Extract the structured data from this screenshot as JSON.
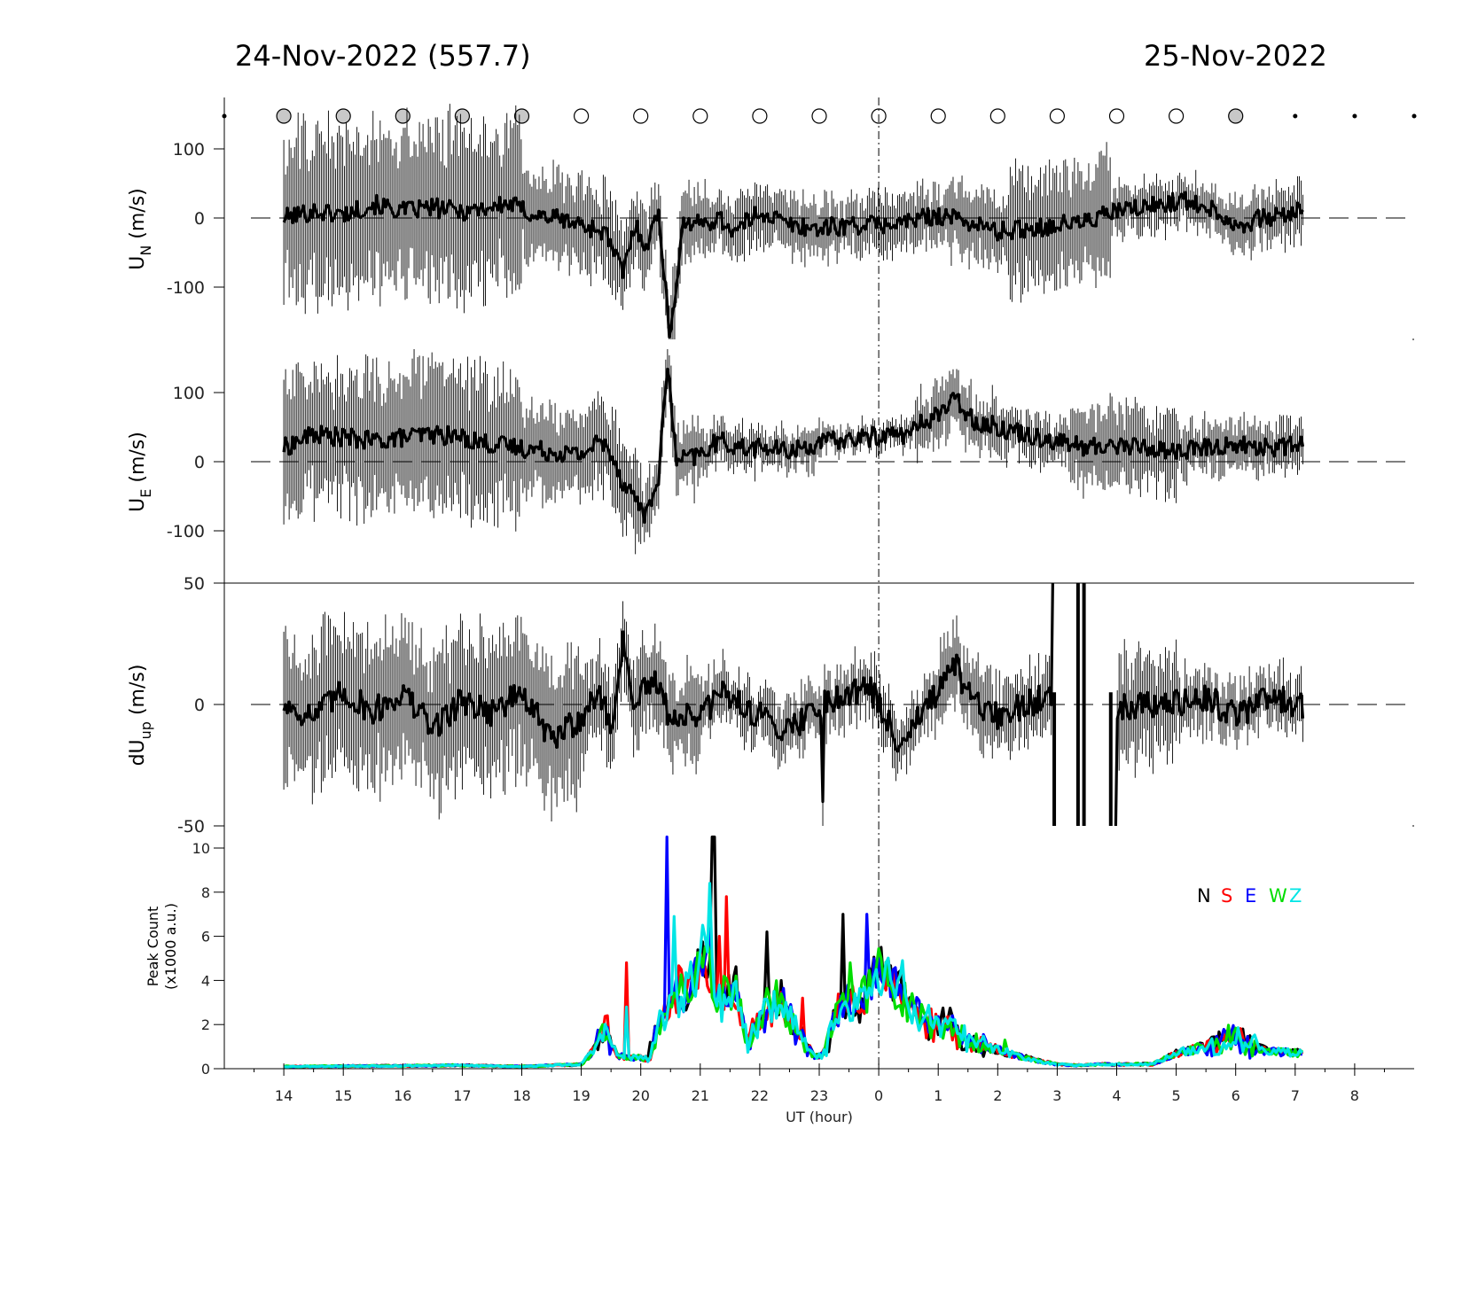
{
  "titles": {
    "left": "24-Nov-2022 (557.7)",
    "right": "25-Nov-2022"
  },
  "colors": {
    "N": "#000000",
    "S": "#ff0000",
    "E": "#0000ff",
    "W": "#00dd00",
    "Z": "#00e5e5"
  },
  "chart_data": [
    {
      "id": "moon",
      "type": "scatter",
      "x": [
        -11,
        -10,
        -9,
        -8,
        -7,
        -6,
        -5,
        -4,
        -3,
        -2,
        -1,
        0,
        1,
        2,
        3,
        4,
        5,
        6,
        7,
        8,
        9
      ],
      "marker": [
        "dot",
        "gray",
        "gray",
        "gray",
        "gray",
        "gray",
        "open",
        "open",
        "open",
        "open",
        "open",
        "open",
        "open",
        "open",
        "open",
        "open",
        "open",
        "gray",
        "dot",
        "dot",
        "dot"
      ]
    },
    {
      "id": "un",
      "type": "line",
      "ylabel": "U",
      "ylabel_sub": "N",
      "ylabel_unit": " (m/s)",
      "ylim": [
        -175,
        175
      ],
      "yticks": [
        100,
        0,
        -100
      ],
      "yticklabels": [
        "100",
        "0",
        "-100"
      ],
      "dashed_zero": true,
      "anchors": [
        [
          -10,
          0
        ],
        [
          -9.5,
          10
        ],
        [
          -9,
          5
        ],
        [
          -8.5,
          20
        ],
        [
          -8,
          10
        ],
        [
          -7.5,
          15
        ],
        [
          -7,
          10
        ],
        [
          -6.6,
          15
        ],
        [
          -6.2,
          20
        ],
        [
          -5.8,
          5
        ],
        [
          -5.4,
          0
        ],
        [
          -5,
          -10
        ],
        [
          -4.6,
          -20
        ],
        [
          -4.3,
          -80
        ],
        [
          -4.1,
          -10
        ],
        [
          -3.9,
          -40
        ],
        [
          -3.7,
          10
        ],
        [
          -3.5,
          -180
        ],
        [
          -3.3,
          -5
        ],
        [
          -3,
          -10
        ],
        [
          -2.7,
          0
        ],
        [
          -2.4,
          -20
        ],
        [
          -2,
          10
        ],
        [
          -1.5,
          -10
        ],
        [
          -1,
          -15
        ],
        [
          -0.5,
          -10
        ],
        [
          0,
          -10
        ],
        [
          0.5,
          -5
        ],
        [
          1,
          5
        ],
        [
          1.5,
          -5
        ],
        [
          2,
          -20
        ],
        [
          2.5,
          -15
        ],
        [
          3,
          -10
        ],
        [
          3.5,
          -5
        ],
        [
          4,
          10
        ],
        [
          4.5,
          15
        ],
        [
          5,
          25
        ],
        [
          5.5,
          20
        ],
        [
          6,
          -10
        ],
        [
          6.5,
          0
        ],
        [
          7.15,
          10
        ]
      ],
      "noise": 14,
      "err_segments": [
        [
          -10,
          -6,
          100
        ],
        [
          -6,
          -4,
          55
        ],
        [
          -4,
          -2.8,
          45
        ],
        [
          -2.8,
          1.2,
          35
        ],
        [
          1.2,
          2.2,
          45
        ],
        [
          2.2,
          3.9,
          70
        ],
        [
          3.9,
          6,
          30
        ],
        [
          6,
          7.15,
          35
        ]
      ]
    },
    {
      "id": "ue",
      "type": "line",
      "ylabel": "U",
      "ylabel_sub": "E",
      "ylabel_unit": " (m/s)",
      "ylim": [
        -175,
        175
      ],
      "yticks": [
        100,
        0,
        -100
      ],
      "yticklabels": [
        "100",
        "0",
        "-100"
      ],
      "dashed_zero": true,
      "anchors": [
        [
          -10,
          20
        ],
        [
          -9.5,
          40
        ],
        [
          -9,
          35
        ],
        [
          -8.5,
          30
        ],
        [
          -8,
          35
        ],
        [
          -7.5,
          40
        ],
        [
          -7,
          35
        ],
        [
          -6.5,
          25
        ],
        [
          -6,
          20
        ],
        [
          -5.5,
          15
        ],
        [
          -5,
          10
        ],
        [
          -4.7,
          30
        ],
        [
          -4.5,
          15
        ],
        [
          -4.3,
          -30
        ],
        [
          -4.1,
          -50
        ],
        [
          -3.9,
          -80
        ],
        [
          -3.7,
          -20
        ],
        [
          -3.55,
          140
        ],
        [
          -3.4,
          0
        ],
        [
          -3,
          10
        ],
        [
          -2.7,
          30
        ],
        [
          -2.3,
          20
        ],
        [
          -1.9,
          20
        ],
        [
          -1.6,
          15
        ],
        [
          -1.3,
          20
        ],
        [
          -0.8,
          30
        ],
        [
          -0.2,
          35
        ],
        [
          0.2,
          40
        ],
        [
          0.5,
          40
        ],
        [
          0.8,
          60
        ],
        [
          1,
          70
        ],
        [
          1.3,
          90
        ],
        [
          1.6,
          60
        ],
        [
          2,
          50
        ],
        [
          2.5,
          40
        ],
        [
          3,
          30
        ],
        [
          3.5,
          20
        ],
        [
          4,
          25
        ],
        [
          4.5,
          20
        ],
        [
          5,
          15
        ],
        [
          5.5,
          20
        ],
        [
          6,
          25
        ],
        [
          6.5,
          20
        ],
        [
          7.15,
          25
        ]
      ],
      "noise": 14,
      "err_segments": [
        [
          -10,
          -6,
          85
        ],
        [
          -6,
          -4,
          55
        ],
        [
          -4,
          -3,
          40
        ],
        [
          -3,
          -1,
          25
        ],
        [
          -1,
          0.6,
          15
        ],
        [
          0.6,
          2,
          35
        ],
        [
          2,
          3.2,
          30
        ],
        [
          3.2,
          5,
          50
        ],
        [
          5,
          7.15,
          30
        ]
      ]
    },
    {
      "id": "dup",
      "type": "line",
      "ylabel": "dU",
      "ylabel_sub": "up",
      "ylabel_unit": " (m/s)",
      "ylim": [
        -50,
        50
      ],
      "yticks": [
        50,
        0,
        -50
      ],
      "yticklabels": [
        "50",
        "0",
        "-50"
      ],
      "dashed_zero": true,
      "anchors": [
        [
          -10,
          0
        ],
        [
          -9.5,
          -5
        ],
        [
          -9,
          5
        ],
        [
          -8.5,
          -3
        ],
        [
          -8,
          5
        ],
        [
          -7.5,
          -10
        ],
        [
          -7,
          2
        ],
        [
          -6.5,
          -3
        ],
        [
          -6,
          5
        ],
        [
          -5.5,
          -15
        ],
        [
          -5,
          -5
        ],
        [
          -4.7,
          5
        ],
        [
          -4.5,
          -10
        ],
        [
          -4.3,
          25
        ],
        [
          -4.1,
          0
        ],
        [
          -3.8,
          10
        ],
        [
          -3.5,
          -5
        ],
        [
          -3,
          -5
        ],
        [
          -2.6,
          5
        ],
        [
          -2,
          -5
        ],
        [
          -1.5,
          -10
        ],
        [
          -1,
          0
        ],
        [
          -0.5,
          5
        ],
        [
          -0.2,
          8
        ],
        [
          0,
          0
        ],
        [
          0.3,
          -15
        ],
        [
          0.7,
          -5
        ],
        [
          1,
          5
        ],
        [
          1.3,
          15
        ],
        [
          1.6,
          0
        ],
        [
          2,
          -5
        ],
        [
          2.5,
          0
        ],
        [
          2.9,
          5
        ],
        [
          3.2,
          0
        ],
        [
          4,
          0
        ],
        [
          4.5,
          0
        ],
        [
          5,
          0
        ],
        [
          5.5,
          3
        ],
        [
          6,
          -5
        ],
        [
          6.5,
          3
        ],
        [
          7.15,
          0
        ]
      ],
      "noise": 6,
      "err_segments": [
        [
          -10,
          -5,
          25
        ],
        [
          -5,
          -3,
          15
        ],
        [
          -3,
          -0.5,
          10
        ],
        [
          -0.5,
          1,
          10
        ],
        [
          1,
          3,
          12
        ],
        [
          3.9,
          5,
          18
        ],
        [
          5,
          7.15,
          10
        ]
      ],
      "gap": [
        2.95,
        3.95
      ],
      "spikes": [
        [
          -0.95,
          -40
        ],
        [
          2.95,
          -55
        ],
        [
          3.35,
          60
        ],
        [
          3.45,
          60
        ],
        [
          3.9,
          -55
        ]
      ]
    },
    {
      "id": "peak",
      "type": "line",
      "ylabel": "Peak Count",
      "ylabel2": "(x1000 a.u.)",
      "ylim": [
        0,
        11
      ],
      "yticks": [
        10,
        8,
        6,
        4,
        2,
        0
      ],
      "yticklabels": [
        "10",
        "8",
        "6",
        "4",
        "2",
        "0"
      ],
      "base": [
        [
          -10,
          0.1
        ],
        [
          -7,
          0.15
        ],
        [
          -6,
          0.1
        ],
        [
          -5,
          0.2
        ],
        [
          -4.8,
          0.8
        ],
        [
          -4.6,
          1.8
        ],
        [
          -4.4,
          0.6
        ],
        [
          -4.2,
          0.5
        ],
        [
          -4,
          0.5
        ],
        [
          -3.85,
          0.4
        ],
        [
          -3.7,
          2
        ],
        [
          -3.5,
          3
        ],
        [
          -3.35,
          3.5
        ],
        [
          -3.2,
          3.5
        ],
        [
          -3.05,
          4.5
        ],
        [
          -2.9,
          5.5
        ],
        [
          -2.7,
          3
        ],
        [
          -2.4,
          3.5
        ],
        [
          -2.2,
          1.2
        ],
        [
          -1.95,
          2.5
        ],
        [
          -1.7,
          3.2
        ],
        [
          -1.4,
          1.8
        ],
        [
          -1.1,
          0.6
        ],
        [
          -0.95,
          0.6
        ],
        [
          -0.65,
          2.8
        ],
        [
          -0.45,
          3
        ],
        [
          -0.25,
          3.2
        ],
        [
          -0.05,
          4.5
        ],
        [
          0.15,
          4.2
        ],
        [
          0.4,
          3.2
        ],
        [
          0.6,
          2.5
        ],
        [
          0.9,
          2
        ],
        [
          1.2,
          2
        ],
        [
          1.5,
          1.2
        ],
        [
          1.8,
          1
        ],
        [
          2.2,
          0.7
        ],
        [
          2.6,
          0.4
        ],
        [
          3,
          0.2
        ],
        [
          3.4,
          0.15
        ],
        [
          3.8,
          0.2
        ],
        [
          4.2,
          0.2
        ],
        [
          4.6,
          0.2
        ],
        [
          5,
          0.7
        ],
        [
          5.5,
          1
        ],
        [
          6,
          1.4
        ],
        [
          6.5,
          0.8
        ],
        [
          7.15,
          0.7
        ]
      ],
      "series": [
        {
          "name": "N",
          "color": "#000000",
          "seed": 11,
          "spikes": [
            [
              -3.85,
              1.2
            ],
            [
              -2.8,
              10.5
            ],
            [
              -2.75,
              10.5
            ],
            [
              -1.9,
              6.2
            ],
            [
              -0.6,
              7
            ],
            [
              0.05,
              5.5
            ],
            [
              1.5,
              1.5
            ],
            [
              6,
              1.8
            ]
          ]
        },
        {
          "name": "S",
          "color": "#ff0000",
          "seed": 23,
          "spikes": [
            [
              -4.55,
              2.4
            ],
            [
              -4.25,
              4.8
            ],
            [
              -2.55,
              7.8
            ],
            [
              -2.7,
              6
            ],
            [
              -1.3,
              3.2
            ],
            [
              0.15,
              5
            ]
          ]
        },
        {
          "name": "E",
          "color": "#0000ff",
          "seed": 37,
          "spikes": [
            [
              -3.55,
              10.5
            ],
            [
              -3.1,
              5
            ],
            [
              -0.2,
              7
            ],
            [
              -0.5,
              2.5
            ],
            [
              0.6,
              2.5
            ]
          ]
        },
        {
          "name": "W",
          "color": "#00dd00",
          "seed": 41,
          "spikes": [
            [
              -4.65,
              2
            ],
            [
              -2.4,
              4.2
            ],
            [
              -0.5,
              4.8
            ],
            [
              0.05,
              5
            ],
            [
              2.1,
              1.3
            ]
          ]
        },
        {
          "name": "Z",
          "color": "#00e5e5",
          "seed": 53,
          "spikes": [
            [
              -4.25,
              2.8
            ],
            [
              -3.45,
              6.9
            ],
            [
              -2.85,
              8.4
            ],
            [
              -1.5,
              2.8
            ],
            [
              0.4,
              4.9
            ]
          ]
        }
      ]
    }
  ],
  "xaxis": {
    "label": "UT (hour)",
    "xlim": [
      -11,
      9
    ],
    "ticks": [
      -10,
      -9,
      -8,
      -7,
      -6,
      -5,
      -4,
      -3,
      -2,
      -1,
      0,
      1,
      2,
      3,
      4,
      5,
      6,
      7,
      8
    ],
    "ticklabels": [
      "14",
      "15",
      "16",
      "17",
      "18",
      "19",
      "20",
      "21",
      "22",
      "23",
      "0",
      "1",
      "2",
      "3",
      "4",
      "5",
      "6",
      "7",
      "8"
    ]
  },
  "legend": [
    {
      "letter": "N",
      "color": "#000000"
    },
    {
      "letter": "S",
      "color": "#ff0000"
    },
    {
      "letter": "E",
      "color": "#0000ff"
    },
    {
      "letter": "W",
      "color": "#00dd00"
    },
    {
      "letter": "Z",
      "color": "#00e5e5"
    }
  ]
}
